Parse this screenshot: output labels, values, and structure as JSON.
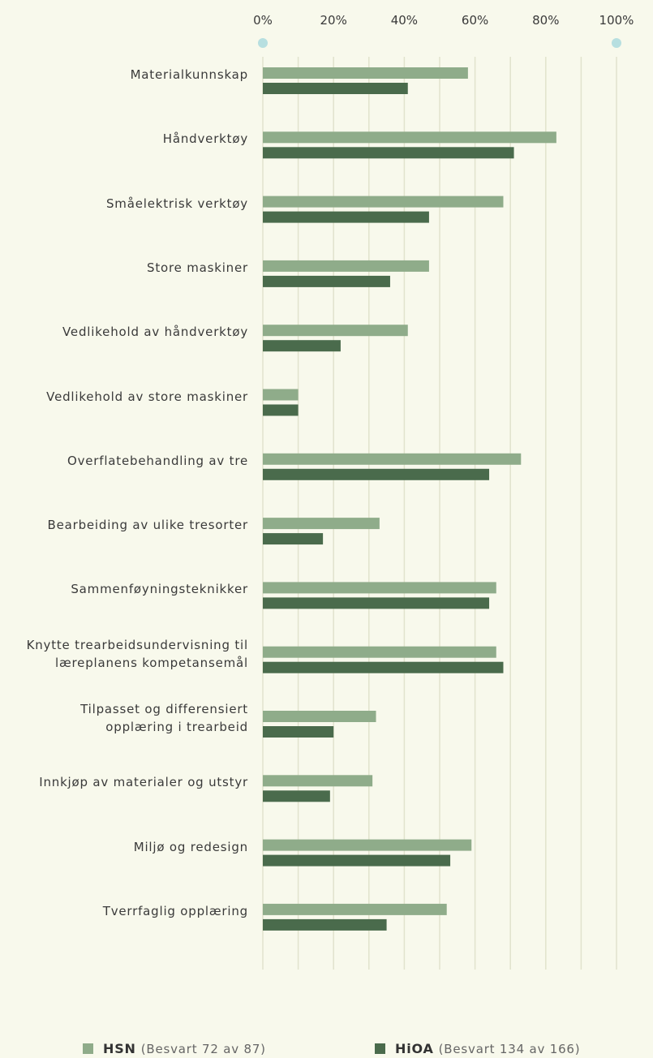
{
  "chart_data": {
    "type": "hbar",
    "categories": [
      "Materialkunnskap",
      "Håndverktøy",
      "Småelektrisk verktøy",
      "Store maskiner",
      "Vedlikehold av håndverktøy",
      "Vedlikehold av store maskiner",
      "Overflatebehandling av tre",
      "Bearbeiding av ulike tresorter",
      "Sammenføyningsteknikker",
      "Knytte trearbeidsundervisning til\nlæreplanens kompetansemål",
      "Tilpasset og differensiert\nopplæring i trearbeid",
      "Innkjøp av materialer og utstyr",
      "Miljø og redesign",
      "Tverrfaglig opplæring"
    ],
    "series": [
      {
        "name": "HSN",
        "legend_note": "(Besvart 72 av 87)",
        "color": "#8fac8a",
        "values": [
          58,
          83,
          68,
          47,
          41,
          10,
          73,
          33,
          66,
          66,
          32,
          31,
          59,
          52
        ]
      },
      {
        "name": "HiOA",
        "legend_note": "(Besvart 134 av 166)",
        "color": "#4a6b4c",
        "values": [
          41,
          71,
          47,
          36,
          22,
          10,
          64,
          17,
          64,
          68,
          20,
          19,
          53,
          35
        ]
      }
    ],
    "xlim": [
      0,
      100
    ],
    "xticks": [
      {
        "value": 0,
        "label": "0%"
      },
      {
        "value": 20,
        "label": "20%"
      },
      {
        "value": 40,
        "label": "40%"
      },
      {
        "value": 60,
        "label": "60%"
      },
      {
        "value": 80,
        "label": "80%"
      },
      {
        "value": 100,
        "label": "100%"
      }
    ],
    "xgrid": [
      0,
      10,
      20,
      30,
      40,
      50,
      60,
      70,
      80,
      90,
      100
    ],
    "grid": true
  }
}
